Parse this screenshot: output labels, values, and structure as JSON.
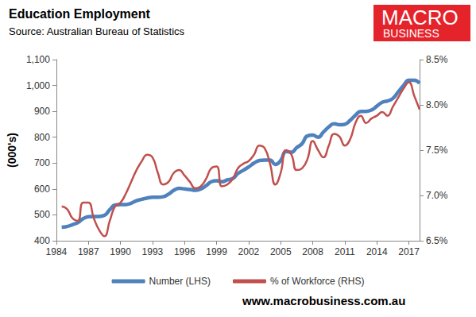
{
  "chart_data": {
    "type": "line",
    "title": "Education Employment",
    "subtitle": "Source: Australian Bureau of Statistics",
    "ylabel": "(000's)",
    "x": [
      1984.5,
      1985,
      1985.5,
      1986,
      1986.5,
      1987,
      1987.5,
      1988,
      1988.5,
      1989,
      1989.5,
      1990,
      1990.5,
      1991,
      1991.5,
      1992,
      1992.5,
      1993,
      1993.5,
      1994,
      1994.5,
      1995,
      1995.5,
      1996,
      1996.5,
      1997,
      1997.5,
      1998,
      1998.5,
      1999,
      1999.5,
      2000,
      2000.5,
      2001,
      2001.5,
      2002,
      2002.5,
      2003,
      2003.5,
      2004,
      2004.5,
      2005,
      2005.5,
      2006,
      2006.5,
      2007,
      2007.5,
      2008,
      2008.5,
      2009,
      2009.5,
      2010,
      2010.5,
      2011,
      2011.5,
      2012,
      2012.5,
      2013,
      2013.5,
      2014,
      2014.5,
      2015,
      2015.5,
      2016,
      2016.5,
      2017,
      2017.5,
      2018
    ],
    "xlim": [
      1984,
      2018
    ],
    "xticks": [
      1984,
      1987,
      1990,
      1993,
      1996,
      1999,
      2002,
      2005,
      2008,
      2011,
      2014,
      2017
    ],
    "ylim": [
      400,
      1100
    ],
    "yticks": [
      400,
      500,
      600,
      700,
      800,
      900,
      {
        "value": 1000,
        "label": "1,000"
      },
      {
        "value": 1100,
        "label": "1,100"
      }
    ],
    "y2lim": [
      6.5,
      8.5
    ],
    "y2ticks": [
      {
        "value": 6.5,
        "label": "6.5%"
      },
      {
        "value": 7,
        "label": "7.0%"
      },
      {
        "value": 7.5,
        "label": "7.5%"
      },
      {
        "value": 8,
        "label": "8.0%"
      },
      {
        "value": 8.5,
        "label": "8.5%"
      }
    ],
    "grid": false,
    "legend": "bottom",
    "series": [
      {
        "name": "Number (LHS)",
        "color": "#4f81bd",
        "values": [
          452,
          455,
          462,
          470,
          485,
          493,
          494,
          494,
          498,
          520,
          538,
          540,
          540,
          545,
          555,
          560,
          565,
          568,
          568,
          570,
          580,
          595,
          603,
          600,
          598,
          595,
          600,
          612,
          628,
          632,
          628,
          635,
          640,
          660,
          672,
          685,
          700,
          710,
          712,
          712,
          695,
          710,
          745,
          742,
          760,
          775,
          805,
          808,
          800,
          820,
          840,
          852,
          848,
          850,
          865,
          885,
          900,
          900,
          905,
          920,
          935,
          940,
          950,
          975,
          1000,
          1020,
          1020,
          1008
        ]
      },
      {
        "name": "% of Workforce (RHS)",
        "color": "#c0504d",
        "axis": "y2",
        "values": [
          6.88,
          6.85,
          6.75,
          6.72,
          6.92,
          6.92,
          6.75,
          6.62,
          6.55,
          6.72,
          6.88,
          6.92,
          7.02,
          7.15,
          7.28,
          7.38,
          7.45,
          7.42,
          7.25,
          7.12,
          7.15,
          7.25,
          7.28,
          7.22,
          7.15,
          7.08,
          7.1,
          7.18,
          7.3,
          7.32,
          7.1,
          7.12,
          7.18,
          7.3,
          7.35,
          7.38,
          7.45,
          7.55,
          7.52,
          7.35,
          7.12,
          7.25,
          7.5,
          7.45,
          7.28,
          7.3,
          7.4,
          7.6,
          7.5,
          7.42,
          7.55,
          7.68,
          7.65,
          7.55,
          7.62,
          7.8,
          7.88,
          7.8,
          7.85,
          7.88,
          7.92,
          7.88,
          7.98,
          8.08,
          8.18,
          8.25,
          8.1,
          7.95
        ]
      }
    ],
    "annotations": [
      "MACRO",
      "BUSINESS",
      "www.macrobusiness.com.au"
    ]
  }
}
